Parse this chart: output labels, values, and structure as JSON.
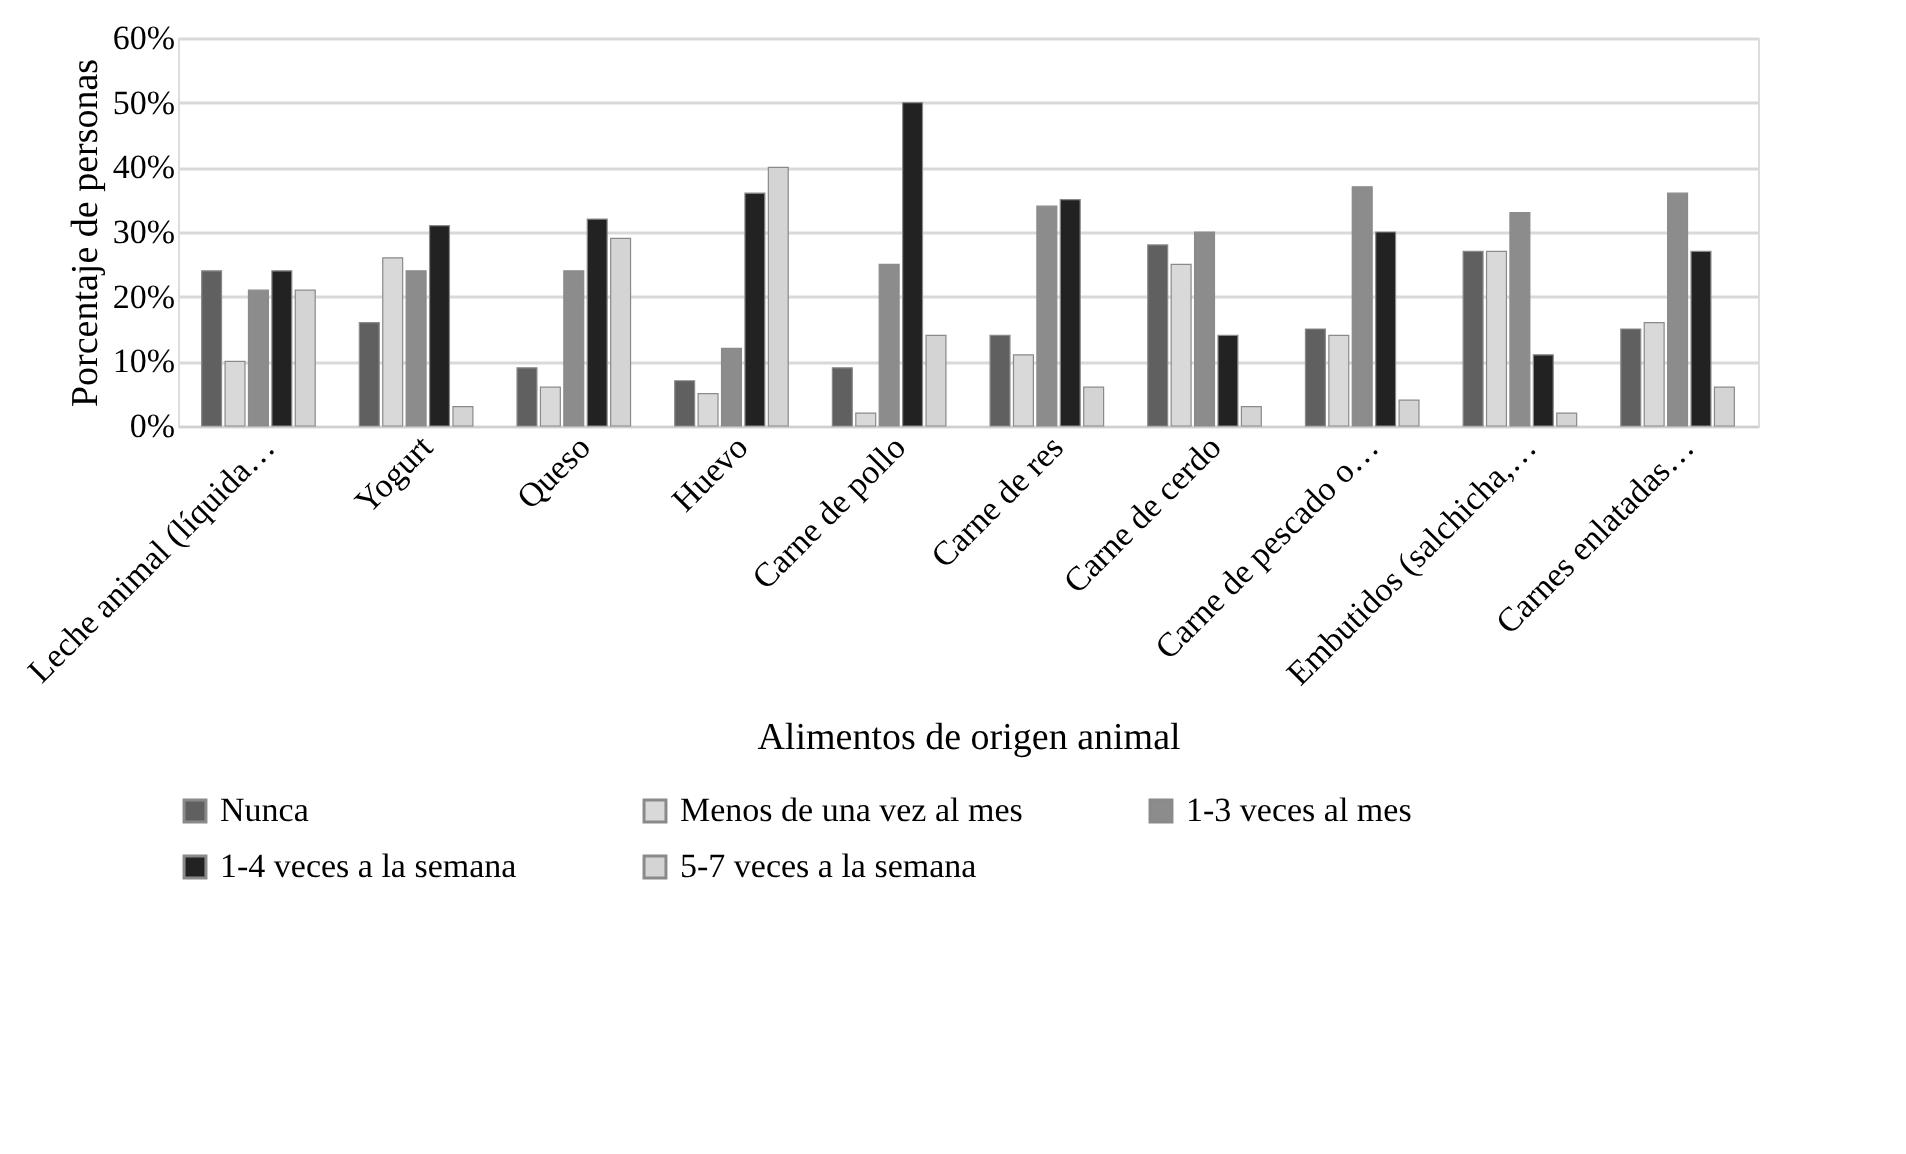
{
  "chart_data": {
    "type": "bar",
    "xlabel": "Alimentos de origen animal",
    "ylabel": "Porcentaje de personas",
    "categories": [
      "Leche animal (líquida…",
      "Yogurt",
      "Queso",
      "Huevo",
      "Carne de pollo",
      "Carne de res",
      "Carne de cerdo",
      "Carne de pescado o…",
      "Embutidos (salchicha,…",
      "Carnes enlatadas…"
    ],
    "series": [
      {
        "name": "Nunca",
        "color": "#606060",
        "values": [
          24,
          16,
          9,
          7,
          9,
          14,
          28,
          15,
          27,
          15
        ]
      },
      {
        "name": "Menos de una vez al mes",
        "color": "#d9d9d9",
        "values": [
          10,
          26,
          6,
          5,
          2,
          11,
          25,
          14,
          27,
          16
        ]
      },
      {
        "name": "1-3 veces al mes",
        "color": "#8c8c8c",
        "values": [
          21,
          24,
          24,
          12,
          25,
          34,
          30,
          37,
          33,
          36
        ]
      },
      {
        "name": "1-4 veces a la semana",
        "color": "#222222",
        "values": [
          24,
          31,
          32,
          36,
          50,
          35,
          14,
          30,
          11,
          27
        ]
      },
      {
        "name": "5-7 veces a la semana",
        "color": "#d4d4d4",
        "values": [
          21,
          3,
          29,
          40,
          14,
          6,
          3,
          4,
          2,
          6
        ]
      }
    ],
    "ylim": [
      0,
      60
    ],
    "yticks": [
      {
        "value": 0,
        "label": "0%"
      },
      {
        "value": 10,
        "label": "10%"
      },
      {
        "value": 20,
        "label": "20%"
      },
      {
        "value": 30,
        "label": "30%"
      },
      {
        "value": 40,
        "label": "40%"
      },
      {
        "value": 50,
        "label": "50%"
      },
      {
        "value": 60,
        "label": "60%"
      }
    ],
    "grid": "y",
    "legend": "bottom"
  }
}
